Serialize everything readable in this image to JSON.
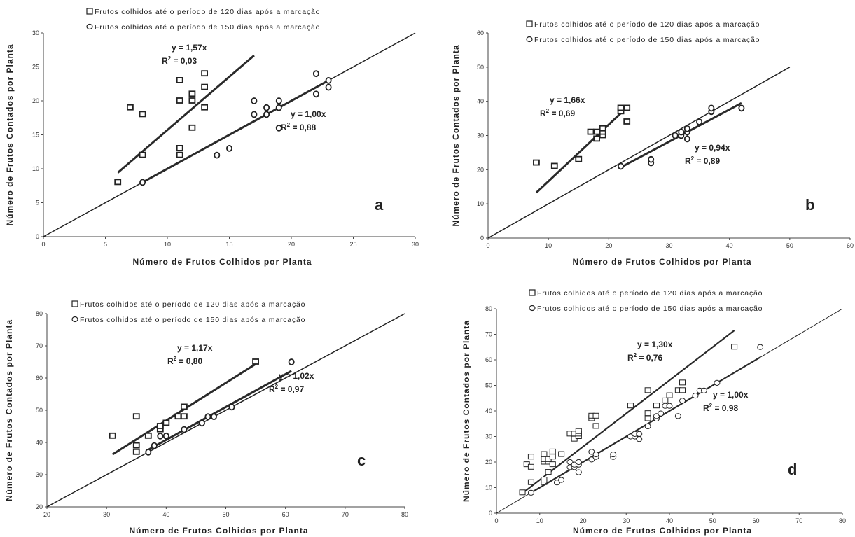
{
  "chart_data": [
    {
      "type": "scatter",
      "panel_letter": "a",
      "xlabel": "Número de Frutos Colhidos por Planta",
      "ylabel": "Número de Frutos Contados por Planta",
      "xlim": [
        0,
        30
      ],
      "ylim": [
        0,
        30
      ],
      "xticks": [
        0,
        5,
        10,
        15,
        20,
        25,
        30
      ],
      "yticks": [
        0,
        5,
        10,
        15,
        20,
        25,
        30
      ],
      "grid": false,
      "legend_position": "top-left",
      "identity_line": [
        0,
        30
      ],
      "series": [
        {
          "name": "Frutos colhidos até o período de 120 dias após a marcação",
          "marker": "square",
          "fit": {
            "slope": 1.57,
            "r2": "0,03",
            "x_range": [
              6,
              17
            ],
            "equation_label": "y = 1,57x",
            "r2_label": "0,03"
          },
          "points": [
            [
              6,
              8
            ],
            [
              7,
              19
            ],
            [
              8,
              12
            ],
            [
              8,
              18
            ],
            [
              11,
              12
            ],
            [
              11,
              13
            ],
            [
              11,
              20
            ],
            [
              11,
              23
            ],
            [
              12,
              16
            ],
            [
              12,
              20
            ],
            [
              12,
              21
            ],
            [
              13,
              19
            ],
            [
              13,
              22
            ],
            [
              13,
              24
            ]
          ]
        },
        {
          "name": "Frutos colhidos até o período de 150 dias após a marcação",
          "marker": "circle",
          "fit": {
            "slope": 1.0,
            "r2": "0,88",
            "x_range": [
              8,
              23
            ],
            "equation_label": "y = 1,00x",
            "r2_label": "0,88"
          },
          "points": [
            [
              8,
              8
            ],
            [
              14,
              12
            ],
            [
              15,
              13
            ],
            [
              17,
              18
            ],
            [
              17,
              20
            ],
            [
              18,
              18
            ],
            [
              18,
              19
            ],
            [
              19,
              16
            ],
            [
              19,
              19
            ],
            [
              19,
              20
            ],
            [
              22,
              21
            ],
            [
              22,
              24
            ],
            [
              23,
              22
            ],
            [
              23,
              23
            ]
          ]
        }
      ]
    },
    {
      "type": "scatter",
      "panel_letter": "b",
      "xlabel": "Número de Frutos Colhidos por Planta",
      "ylabel": "Número de Frutos Contados por Planta",
      "xlim": [
        0,
        60
      ],
      "ylim": [
        0,
        60
      ],
      "xticks": [
        0,
        10,
        20,
        30,
        40,
        50,
        60
      ],
      "yticks": [
        0,
        10,
        20,
        30,
        40,
        50,
        60
      ],
      "grid": false,
      "legend_position": "top-right",
      "identity_line": [
        0,
        50
      ],
      "series": [
        {
          "name": "Frutos colhidos até o período de 120 dias após a marcação",
          "marker": "square",
          "fit": {
            "slope": 1.66,
            "r2": "0,69",
            "x_range": [
              8,
              23
            ],
            "equation_label": "y = 1,66x",
            "r2_label": "0,69"
          },
          "points": [
            [
              8,
              22
            ],
            [
              11,
              21
            ],
            [
              15,
              23
            ],
            [
              17,
              31
            ],
            [
              18,
              29
            ],
            [
              18,
              31
            ],
            [
              19,
              30
            ],
            [
              19,
              31
            ],
            [
              19,
              32
            ],
            [
              22,
              37
            ],
            [
              22,
              38
            ],
            [
              23,
              34
            ],
            [
              23,
              38
            ]
          ]
        },
        {
          "name": "Frutos colhidos até o período de 150 dias após a marcação",
          "marker": "circle",
          "fit": {
            "slope": 0.94,
            "r2": "0,89",
            "x_range": [
              22,
              42
            ],
            "equation_label": "y = 0,94x",
            "r2_label": "0,89"
          },
          "points": [
            [
              22,
              21
            ],
            [
              27,
              22
            ],
            [
              27,
              23
            ],
            [
              31,
              30
            ],
            [
              32,
              30
            ],
            [
              32,
              31
            ],
            [
              33,
              29
            ],
            [
              33,
              31
            ],
            [
              33,
              32
            ],
            [
              35,
              34
            ],
            [
              37,
              37
            ],
            [
              37,
              38
            ],
            [
              42,
              38
            ]
          ]
        }
      ]
    },
    {
      "type": "scatter",
      "panel_letter": "c",
      "xlabel": "Número de Frutos Colhidos por Planta",
      "ylabel": "Número de Frutos Contados por Planta",
      "xlim": [
        20,
        80
      ],
      "ylim": [
        20,
        80
      ],
      "xticks": [
        20,
        30,
        40,
        50,
        60,
        70,
        80
      ],
      "yticks": [
        20,
        30,
        40,
        50,
        60,
        70,
        80
      ],
      "grid": false,
      "legend_position": "top-left",
      "identity_line": [
        20,
        80
      ],
      "series": [
        {
          "name": "Frutos colhidos até o período de 120 dias após a marcação",
          "marker": "square",
          "fit": {
            "slope": 1.17,
            "r2": "0,80",
            "x_range": [
              31,
              55
            ],
            "equation_label": "y = 1,17x",
            "r2_label": "0,80"
          },
          "points": [
            [
              31,
              42
            ],
            [
              35,
              37
            ],
            [
              35,
              39
            ],
            [
              35,
              48
            ],
            [
              37,
              42
            ],
            [
              39,
              44
            ],
            [
              39,
              45
            ],
            [
              40,
              46
            ],
            [
              42,
              48
            ],
            [
              43,
              48
            ],
            [
              43,
              51
            ],
            [
              55,
              65
            ]
          ]
        },
        {
          "name": "Frutos colhidos até o período de 150 dias após a marcação",
          "marker": "circle",
          "fit": {
            "slope": 1.02,
            "r2": "0,97",
            "x_range": [
              37,
              61
            ],
            "equation_label": "y = 1,02x",
            "r2_label": "0,97"
          },
          "points": [
            [
              37,
              37
            ],
            [
              38,
              39
            ],
            [
              39,
              42
            ],
            [
              40,
              42
            ],
            [
              43,
              44
            ],
            [
              46,
              46
            ],
            [
              47,
              48
            ],
            [
              48,
              48
            ],
            [
              51,
              51
            ],
            [
              61,
              65
            ]
          ]
        }
      ]
    },
    {
      "type": "scatter",
      "panel_letter": "d",
      "xlabel": "Número de Frutos Colhidos por Planta",
      "ylabel": "Número de Frutos Contados por Planta",
      "xlim": [
        0,
        80
      ],
      "ylim": [
        0,
        80
      ],
      "xticks": [
        0,
        10,
        20,
        30,
        40,
        50,
        60,
        70,
        80
      ],
      "yticks": [
        0,
        10,
        20,
        30,
        40,
        50,
        60,
        70,
        80
      ],
      "grid": false,
      "legend_position": "top-left",
      "identity_line": [
        0,
        80
      ],
      "series": [
        {
          "name": "Frutos colhidos até o período de 120 dias após a marcação",
          "marker": "square",
          "fit": {
            "slope": 1.3,
            "r2": "0,76",
            "x_range": [
              6,
              55
            ],
            "equation_label": "y = 1,30x",
            "r2_label": "0,76"
          },
          "points": [
            [
              6,
              8
            ],
            [
              7,
              19
            ],
            [
              8,
              12
            ],
            [
              8,
              18
            ],
            [
              8,
              22
            ],
            [
              11,
              12
            ],
            [
              11,
              13
            ],
            [
              11,
              20
            ],
            [
              11,
              21
            ],
            [
              11,
              23
            ],
            [
              12,
              16
            ],
            [
              12,
              20
            ],
            [
              12,
              21
            ],
            [
              13,
              19
            ],
            [
              13,
              22
            ],
            [
              13,
              24
            ],
            [
              15,
              23
            ],
            [
              17,
              31
            ],
            [
              18,
              29
            ],
            [
              18,
              31
            ],
            [
              19,
              30
            ],
            [
              19,
              31
            ],
            [
              19,
              32
            ],
            [
              22,
              37
            ],
            [
              22,
              38
            ],
            [
              23,
              34
            ],
            [
              23,
              38
            ],
            [
              31,
              42
            ],
            [
              35,
              37
            ],
            [
              35,
              39
            ],
            [
              35,
              48
            ],
            [
              37,
              42
            ],
            [
              39,
              44
            ],
            [
              40,
              46
            ],
            [
              42,
              48
            ],
            [
              43,
              48
            ],
            [
              43,
              51
            ],
            [
              55,
              65
            ]
          ]
        },
        {
          "name": "Frutos colhidos até o período de 150 dias após a marcação",
          "marker": "circle",
          "fit": {
            "slope": 1.0,
            "r2": "0,98",
            "x_range": [
              8,
              61
            ],
            "equation_label": "y = 1,00x",
            "r2_label": "0,98"
          },
          "points": [
            [
              8,
              8
            ],
            [
              14,
              12
            ],
            [
              15,
              13
            ],
            [
              17,
              18
            ],
            [
              17,
              20
            ],
            [
              18,
              18
            ],
            [
              18,
              19
            ],
            [
              19,
              16
            ],
            [
              19,
              19
            ],
            [
              19,
              20
            ],
            [
              22,
              21
            ],
            [
              22,
              24
            ],
            [
              23,
              22
            ],
            [
              23,
              23
            ],
            [
              27,
              22
            ],
            [
              27,
              23
            ],
            [
              31,
              30
            ],
            [
              32,
              30
            ],
            [
              32,
              31
            ],
            [
              33,
              29
            ],
            [
              33,
              31
            ],
            [
              35,
              34
            ],
            [
              37,
              37
            ],
            [
              37,
              38
            ],
            [
              38,
              39
            ],
            [
              39,
              42
            ],
            [
              40,
              42
            ],
            [
              42,
              38
            ],
            [
              43,
              44
            ],
            [
              46,
              46
            ],
            [
              47,
              48
            ],
            [
              48,
              48
            ],
            [
              51,
              51
            ],
            [
              61,
              65
            ]
          ]
        }
      ]
    }
  ]
}
